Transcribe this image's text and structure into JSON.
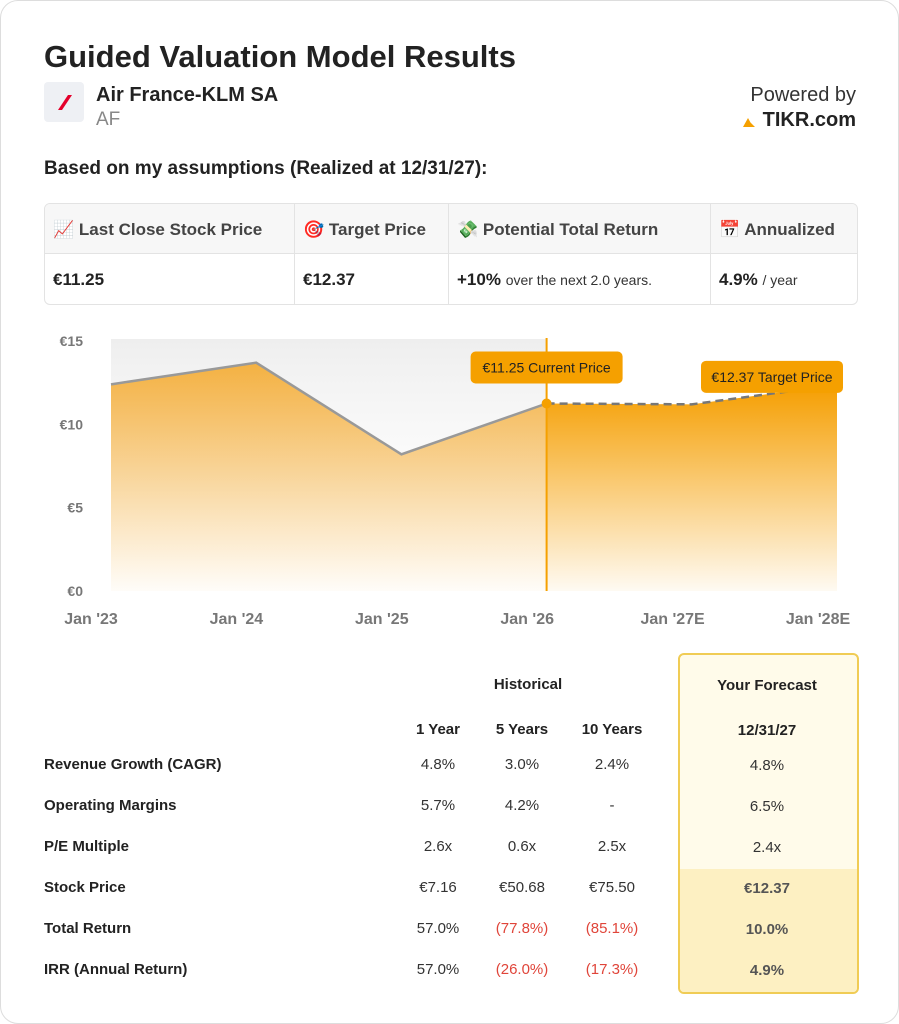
{
  "header": {
    "title": "Guided Valuation Model Results",
    "company": "Air France-KLM SA",
    "ticker": "AF",
    "powered_by": "Powered by",
    "brand": "TIKR.com"
  },
  "subtitle": "Based on my assumptions (Realized at 12/31/27):",
  "summary": {
    "icons": [
      "📈",
      "🎯",
      "💸",
      "📅"
    ],
    "headers": [
      "Last Close Stock Price",
      "Target Price",
      "Potential Total Return",
      "Annualized"
    ],
    "last_close": "€11.25",
    "target": "€12.37",
    "return": "+10%",
    "return_note": "over the next 2.0 years.",
    "annualized": "4.9%",
    "annualized_note": "/ year"
  },
  "chart_data": {
    "type": "area",
    "categories": [
      "Jan '23",
      "Jan '24",
      "Jan '25",
      "Jan '26",
      "Jan '27E",
      "Jan '28E"
    ],
    "series": [
      {
        "color": "#f5a623",
        "values": [
          12.4,
          13.7,
          8.2,
          11.25,
          null,
          null
        ]
      },
      {
        "color": "#f5a000",
        "values": [
          null,
          null,
          null,
          11.25,
          11.2,
          12.37
        ],
        "dashed": true
      }
    ],
    "ylim": [
      0,
      15
    ],
    "yticks": [
      {
        "value": 0,
        "label": "€0"
      },
      {
        "value": 5,
        "label": "€5"
      },
      {
        "value": 10,
        "label": "€10"
      },
      {
        "value": 15,
        "label": "€15"
      }
    ],
    "annotations": [
      "€11.25 Current Price",
      "€12.37 Target Price"
    ]
  },
  "table": {
    "group_historical": "Historical",
    "group_forecast": "Your Forecast",
    "columns": [
      "1 Year",
      "5 Years",
      "10 Years",
      "12/31/27"
    ],
    "rows": [
      {
        "label": "Revenue Growth (CAGR)",
        "values": [
          "4.8%",
          "3.0%",
          "2.4%",
          "4.8%"
        ]
      },
      {
        "label": "Operating Margins",
        "values": [
          "5.7%",
          "4.2%",
          "-",
          "6.5%"
        ]
      },
      {
        "label": "P/E Multiple",
        "values": [
          "2.6x",
          "0.6x",
          "2.5x",
          "2.4x"
        ]
      },
      {
        "label": "Stock Price",
        "values": [
          "€7.16",
          "€50.68",
          "€75.50",
          "€12.37"
        ]
      },
      {
        "label": "Total Return",
        "values": [
          "57.0%",
          "(77.8%)",
          "(85.1%)",
          "10.0%"
        ]
      },
      {
        "label": "IRR (Annual Return)",
        "values": [
          "57.0%",
          "(26.0%)",
          "(17.3%)",
          "4.9%"
        ]
      }
    ]
  }
}
